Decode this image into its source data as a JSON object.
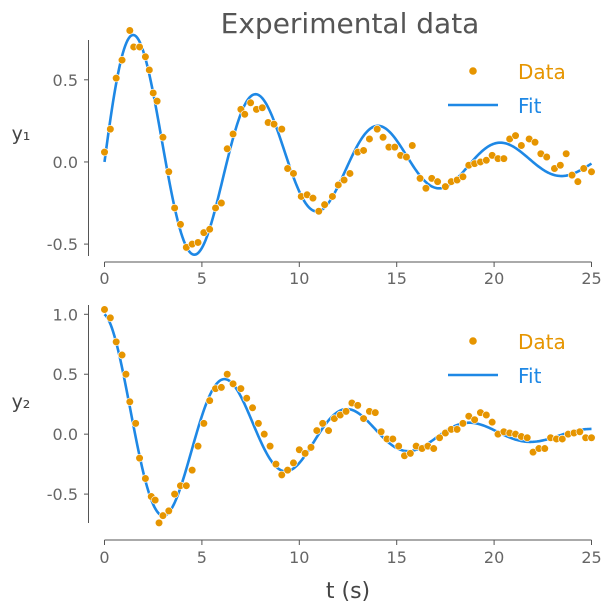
{
  "chart_data": {
    "type": "scatter",
    "title": "Experimental data",
    "xlabel": "t (s)",
    "colors": {
      "data": "#e69500",
      "fit": "#1e88e5"
    },
    "x_ticks": [
      "0",
      "5",
      "10",
      "15",
      "20",
      "25"
    ],
    "xlim": [
      0,
      25
    ],
    "subplots": [
      {
        "ylabel": "y₁",
        "ylim": [
          -0.58,
          0.88
        ],
        "y_ticks": [
          0.5,
          0.0,
          -0.5
        ],
        "y_tick_labels": [
          "0.5",
          "0.0",
          "-0.5"
        ],
        "legend": {
          "placement": "top-right",
          "data_label": "Data",
          "fit_label": "Fit"
        },
        "fit_model": {
          "A": 0.9,
          "tau": 10.0,
          "omega": 1.0,
          "phase": 0.0
        },
        "series": [
          {
            "name": "Data",
            "type": "scatter",
            "x": [
              0.0,
              0.3,
              0.6,
              0.9,
              1.3,
              1.5,
              1.8,
              2.1,
              2.3,
              2.5,
              2.7,
              3.0,
              3.3,
              3.6,
              3.9,
              4.2,
              4.5,
              4.8,
              5.1,
              5.4,
              5.7,
              6.0,
              6.3,
              6.6,
              7.0,
              7.2,
              7.5,
              7.8,
              8.1,
              8.4,
              8.7,
              9.1,
              9.4,
              9.7,
              10.1,
              10.4,
              10.7,
              11.0,
              11.3,
              11.7,
              12.0,
              12.3,
              12.6,
              13.0,
              13.3,
              13.6,
              14.0,
              14.3,
              14.6,
              14.9,
              15.2,
              15.5,
              15.8,
              16.2,
              16.5,
              16.8,
              17.1,
              17.5,
              17.8,
              18.1,
              18.4,
              18.7,
              19.0,
              19.3,
              19.6,
              19.9,
              20.2,
              20.5,
              20.8,
              21.1,
              21.4,
              21.8,
              22.1,
              22.4,
              22.7,
              23.1,
              23.4,
              23.7,
              24.0,
              24.3,
              24.6,
              25.0
            ],
            "y": [
              0.06,
              0.2,
              0.51,
              0.62,
              0.8,
              0.7,
              0.7,
              0.64,
              0.56,
              0.42,
              0.37,
              0.15,
              -0.06,
              -0.28,
              -0.38,
              -0.52,
              -0.5,
              -0.49,
              -0.43,
              -0.41,
              -0.28,
              -0.25,
              0.08,
              0.17,
              0.32,
              0.29,
              0.36,
              0.32,
              0.33,
              0.24,
              0.23,
              0.2,
              -0.04,
              -0.07,
              -0.21,
              -0.2,
              -0.22,
              -0.3,
              -0.26,
              -0.21,
              -0.14,
              -0.11,
              -0.07,
              0.06,
              0.07,
              0.14,
              0.2,
              0.15,
              0.09,
              0.09,
              0.04,
              0.03,
              0.1,
              -0.1,
              -0.16,
              -0.1,
              -0.12,
              -0.15,
              -0.12,
              -0.11,
              -0.09,
              -0.02,
              -0.01,
              0.0,
              0.01,
              0.04,
              0.02,
              0.02,
              0.14,
              0.16,
              0.1,
              0.14,
              0.12,
              0.05,
              0.03,
              -0.04,
              -0.02,
              0.05,
              -0.08,
              -0.12,
              -0.04,
              -0.06
            ]
          },
          {
            "name": "Fit",
            "type": "line",
            "x_range": [
              0,
              25
            ]
          }
        ]
      },
      {
        "ylabel": "y₂",
        "ylim": [
          -0.72,
          1.05
        ],
        "y_ticks": [
          1.0,
          0.5,
          0.0,
          -0.5
        ],
        "y_tick_labels": [
          "1.0",
          "0.5",
          "0.0",
          "-0.5"
        ],
        "legend": {
          "placement": "top-right",
          "data_label": "Data",
          "fit_label": "Fit"
        },
        "fit_model": {
          "A": 1.0,
          "tau": 8.0,
          "omega": 1.0,
          "phase": 1.5708
        },
        "series": [
          {
            "name": "Data",
            "type": "scatter",
            "x": [
              0.0,
              0.3,
              0.6,
              0.9,
              1.1,
              1.3,
              1.6,
              1.8,
              2.1,
              2.4,
              2.6,
              2.8,
              3.0,
              3.3,
              3.6,
              3.9,
              4.2,
              4.5,
              4.8,
              5.1,
              5.4,
              5.7,
              6.0,
              6.3,
              6.6,
              7.0,
              7.3,
              7.6,
              7.9,
              8.2,
              8.5,
              8.8,
              9.1,
              9.4,
              9.7,
              10.0,
              10.3,
              10.6,
              10.9,
              11.2,
              11.5,
              11.8,
              12.1,
              12.4,
              12.7,
              13.0,
              13.3,
              13.6,
              13.9,
              14.2,
              14.5,
              14.8,
              15.1,
              15.4,
              15.7,
              16.0,
              16.3,
              16.6,
              16.9,
              17.2,
              17.5,
              17.8,
              18.1,
              18.4,
              18.7,
              19.0,
              19.3,
              19.6,
              19.9,
              20.2,
              20.5,
              20.8,
              21.1,
              21.4,
              21.7,
              22.0,
              22.3,
              22.6,
              22.9,
              23.2,
              23.5,
              23.8,
              24.1,
              24.4,
              24.7,
              25.0
            ],
            "y": [
              1.04,
              0.97,
              0.77,
              0.66,
              0.5,
              0.27,
              0.09,
              -0.2,
              -0.37,
              -0.52,
              -0.55,
              -0.74,
              -0.68,
              -0.64,
              -0.5,
              -0.43,
              -0.43,
              -0.3,
              -0.1,
              0.09,
              0.28,
              0.38,
              0.39,
              0.5,
              0.42,
              0.38,
              0.3,
              0.22,
              0.09,
              0.0,
              -0.1,
              -0.25,
              -0.34,
              -0.3,
              -0.24,
              -0.13,
              -0.16,
              -0.11,
              0.03,
              0.09,
              0.03,
              0.13,
              0.16,
              0.19,
              0.26,
              0.24,
              0.13,
              0.19,
              0.18,
              0.02,
              -0.04,
              -0.04,
              -0.1,
              -0.18,
              -0.16,
              -0.1,
              -0.12,
              -0.1,
              -0.12,
              -0.03,
              0.01,
              0.04,
              0.04,
              0.09,
              0.15,
              0.12,
              0.18,
              0.16,
              0.1,
              0.0,
              0.02,
              0.01,
              0.0,
              -0.02,
              -0.03,
              -0.15,
              -0.12,
              -0.12,
              -0.03,
              -0.04,
              -0.04,
              0.0,
              0.01,
              0.02,
              -0.03,
              -0.03
            ]
          },
          {
            "name": "Fit",
            "type": "line",
            "x_range": [
              0,
              25
            ]
          }
        ]
      }
    ]
  }
}
